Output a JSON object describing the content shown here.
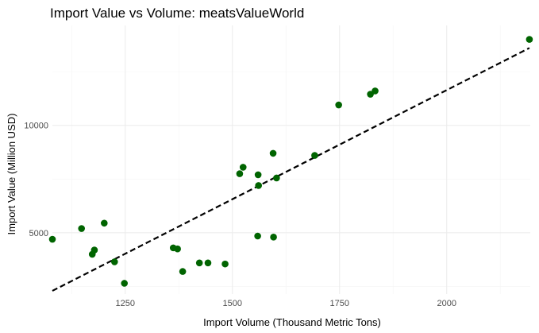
{
  "chart_data": {
    "type": "scatter",
    "title": "Import Value vs Volume: meatsValueWorld",
    "xlabel": "Import Volume (Thousand Metric Tons)",
    "ylabel": "Import Value (Million USD)",
    "xlim": [
      1080,
      2195
    ],
    "ylim": [
      2150,
      14650
    ],
    "x_ticks": [
      1250,
      1500,
      1750,
      2000
    ],
    "x_tick_labels": [
      "1250",
      "1500",
      "1750",
      "2000"
    ],
    "y_ticks": [
      5000,
      10000
    ],
    "y_tick_labels": [
      "5000",
      "10000"
    ],
    "grid": true,
    "point_color": "#006400",
    "points": [
      {
        "x": 1080,
        "y": 4700
      },
      {
        "x": 1148,
        "y": 5200
      },
      {
        "x": 1173,
        "y": 4000
      },
      {
        "x": 1178,
        "y": 4200
      },
      {
        "x": 1201,
        "y": 5450
      },
      {
        "x": 1225,
        "y": 3650
      },
      {
        "x": 1248,
        "y": 2650
      },
      {
        "x": 1362,
        "y": 4300
      },
      {
        "x": 1372,
        "y": 4250
      },
      {
        "x": 1384,
        "y": 3200
      },
      {
        "x": 1423,
        "y": 3600
      },
      {
        "x": 1443,
        "y": 3600
      },
      {
        "x": 1483,
        "y": 3550
      },
      {
        "x": 1517,
        "y": 7750
      },
      {
        "x": 1525,
        "y": 8050
      },
      {
        "x": 1559,
        "y": 4850
      },
      {
        "x": 1560,
        "y": 7700
      },
      {
        "x": 1561,
        "y": 7200
      },
      {
        "x": 1595,
        "y": 8700
      },
      {
        "x": 1596,
        "y": 4800
      },
      {
        "x": 1603,
        "y": 7550
      },
      {
        "x": 1692,
        "y": 8600
      },
      {
        "x": 1748,
        "y": 10950
      },
      {
        "x": 1822,
        "y": 11450
      },
      {
        "x": 1833,
        "y": 11600
      },
      {
        "x": 2193,
        "y": 14000
      }
    ],
    "trend_line": {
      "style": "dashed",
      "color": "#000000",
      "x": [
        1080,
        2193
      ],
      "y": [
        2300,
        13600
      ]
    }
  }
}
